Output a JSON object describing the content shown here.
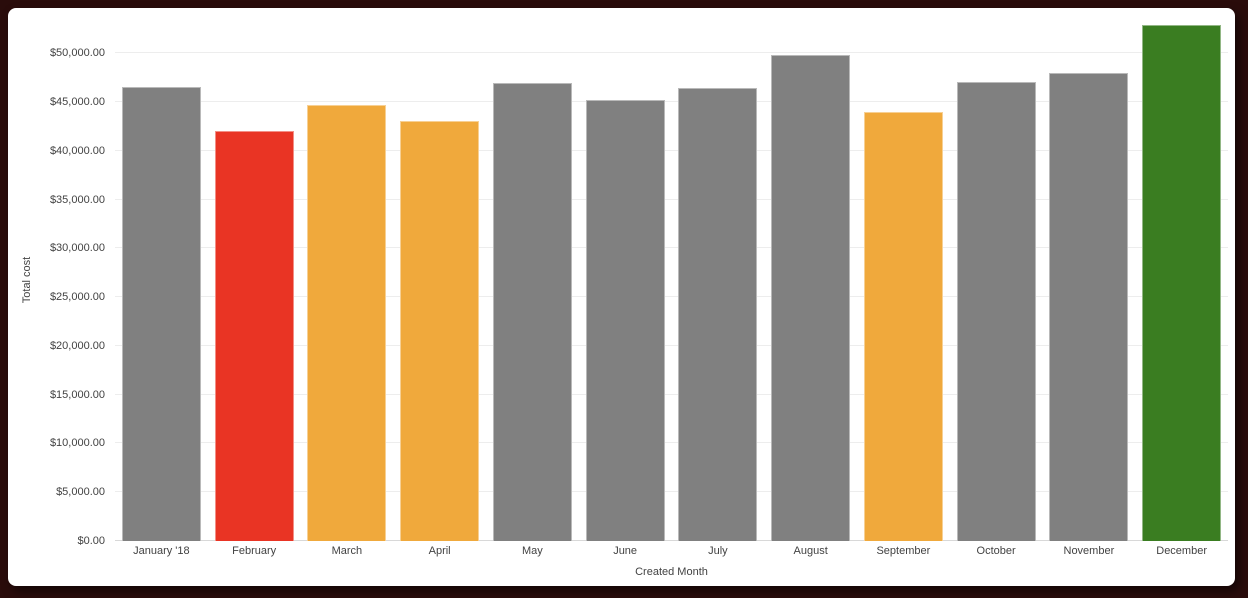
{
  "frame": {
    "background_color": "#2a0c0b",
    "card_color": "#ffffff"
  },
  "chart_data": {
    "type": "bar",
    "title": "",
    "xlabel": "Created Month",
    "ylabel": "Total cost",
    "categories": [
      "January '18",
      "February",
      "March",
      "April",
      "May",
      "June",
      "July",
      "August",
      "September",
      "October",
      "November",
      "December"
    ],
    "values": [
      46500,
      42000,
      44700,
      43000,
      46900,
      45200,
      46400,
      49800,
      44000,
      47000,
      48000,
      52900
    ],
    "bar_colors": [
      "#808080",
      "#E93424",
      "#F0A93C",
      "#F0A93C",
      "#808080",
      "#808080",
      "#808080",
      "#808080",
      "#F0A93C",
      "#808080",
      "#808080",
      "#3A7D21"
    ],
    "default_bar_color": "#808080",
    "highlight_colors": {
      "red": "#E93424",
      "orange": "#F0A93C",
      "green": "#3A7D21"
    },
    "y_ticks": [
      {
        "value": 0,
        "label": "$0.00"
      },
      {
        "value": 5000,
        "label": "$5,000.00"
      },
      {
        "value": 10000,
        "label": "$10,000.00"
      },
      {
        "value": 15000,
        "label": "$15,000.00"
      },
      {
        "value": 20000,
        "label": "$20,000.00"
      },
      {
        "value": 25000,
        "label": "$25,000.00"
      },
      {
        "value": 30000,
        "label": "$30,000.00"
      },
      {
        "value": 35000,
        "label": "$35,000.00"
      },
      {
        "value": 40000,
        "label": "$40,000.00"
      },
      {
        "value": 45000,
        "label": "$45,000.00"
      },
      {
        "value": 50000,
        "label": "$50,000.00"
      }
    ],
    "ylim": [
      0,
      53400
    ],
    "grid": true,
    "legend": "none"
  }
}
